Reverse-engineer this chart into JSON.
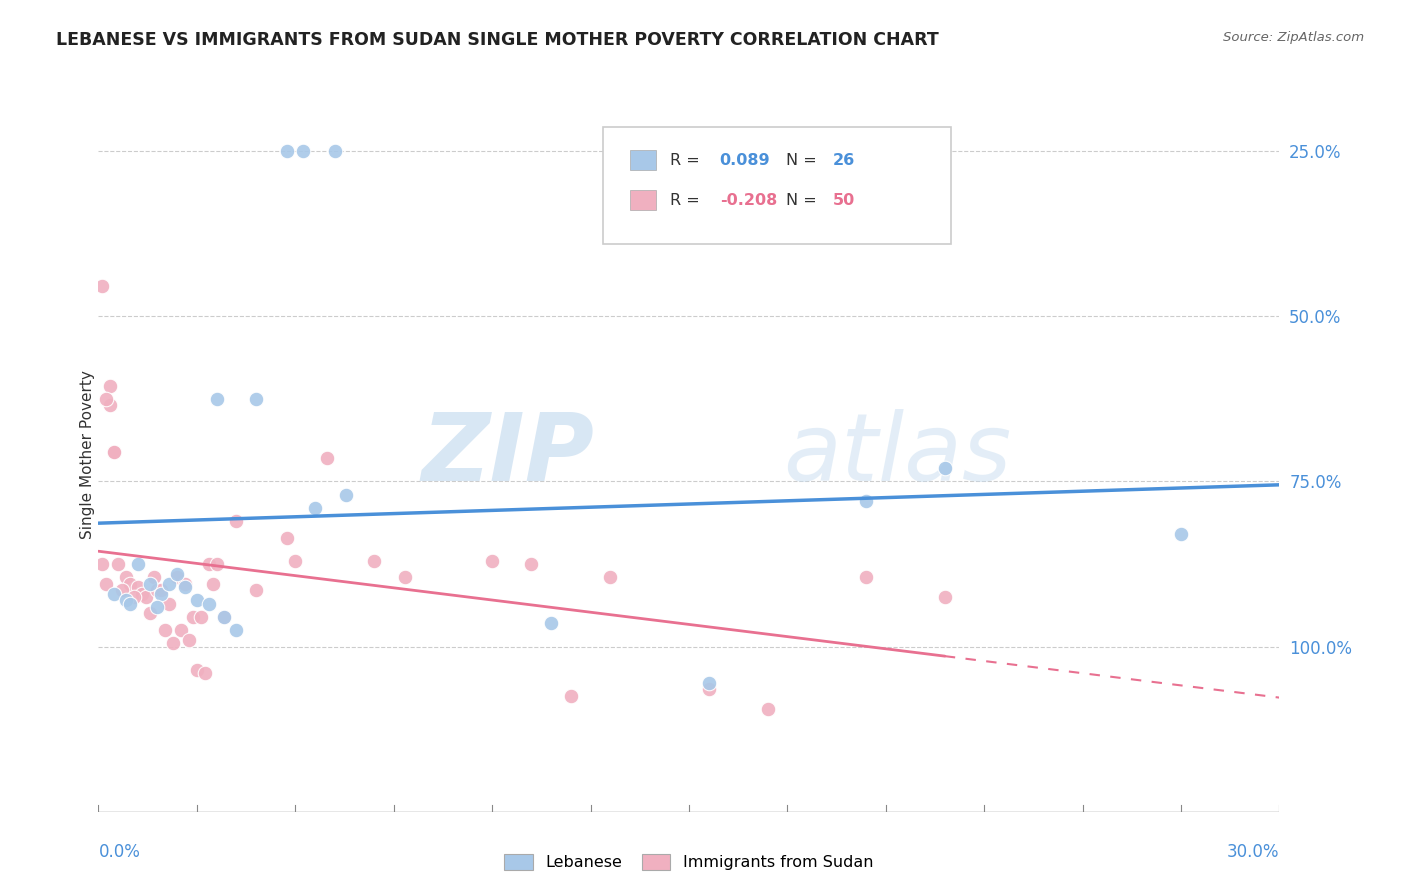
{
  "title": "LEBANESE VS IMMIGRANTS FROM SUDAN SINGLE MOTHER POVERTY CORRELATION CHART",
  "source": "Source: ZipAtlas.com",
  "ylabel": "Single Mother Poverty",
  "legend_label1": "Lebanese",
  "legend_label2": "Immigrants from Sudan",
  "R1": 0.089,
  "N1": 26,
  "R2": -0.208,
  "N2": 50,
  "blue_color": "#a8c8e8",
  "pink_color": "#f0b0c0",
  "blue_line_color": "#4a90d9",
  "pink_line_color": "#e87090",
  "watermark_zip": "ZIP",
  "watermark_atlas": "atlas",
  "xlim": [
    0.0,
    0.3
  ],
  "ylim": [
    0.0,
    1.08
  ],
  "blue_x": [
    0.048,
    0.052,
    0.06,
    0.03,
    0.04,
    0.063,
    0.055,
    0.01,
    0.013,
    0.016,
    0.018,
    0.02,
    0.022,
    0.025,
    0.028,
    0.032,
    0.035,
    0.115,
    0.155,
    0.195,
    0.275,
    0.215,
    0.004,
    0.007,
    0.008,
    0.015
  ],
  "blue_y": [
    1.0,
    1.0,
    1.0,
    0.625,
    0.625,
    0.48,
    0.46,
    0.375,
    0.345,
    0.33,
    0.345,
    0.36,
    0.34,
    0.32,
    0.315,
    0.295,
    0.275,
    0.285,
    0.195,
    0.47,
    0.42,
    0.52,
    0.33,
    0.32,
    0.315,
    0.31
  ],
  "pink_x": [
    0.001,
    0.003,
    0.005,
    0.007,
    0.008,
    0.01,
    0.011,
    0.012,
    0.013,
    0.014,
    0.015,
    0.016,
    0.017,
    0.018,
    0.019,
    0.02,
    0.021,
    0.022,
    0.023,
    0.024,
    0.025,
    0.026,
    0.027,
    0.028,
    0.029,
    0.03,
    0.003,
    0.004,
    0.006,
    0.035,
    0.04,
    0.048,
    0.058,
    0.07,
    0.1,
    0.11,
    0.13,
    0.155,
    0.195,
    0.215,
    0.001,
    0.002,
    0.009,
    0.032,
    0.05,
    0.078,
    0.12,
    0.17,
    0.002,
    0.004
  ],
  "pink_y": [
    0.795,
    0.615,
    0.375,
    0.355,
    0.345,
    0.34,
    0.33,
    0.325,
    0.3,
    0.355,
    0.335,
    0.335,
    0.275,
    0.315,
    0.255,
    0.355,
    0.275,
    0.345,
    0.26,
    0.295,
    0.215,
    0.295,
    0.21,
    0.375,
    0.345,
    0.375,
    0.645,
    0.545,
    0.335,
    0.44,
    0.335,
    0.415,
    0.535,
    0.38,
    0.38,
    0.375,
    0.355,
    0.185,
    0.355,
    0.325,
    0.375,
    0.345,
    0.325,
    0.295,
    0.38,
    0.355,
    0.175,
    0.155,
    0.625,
    0.545
  ]
}
